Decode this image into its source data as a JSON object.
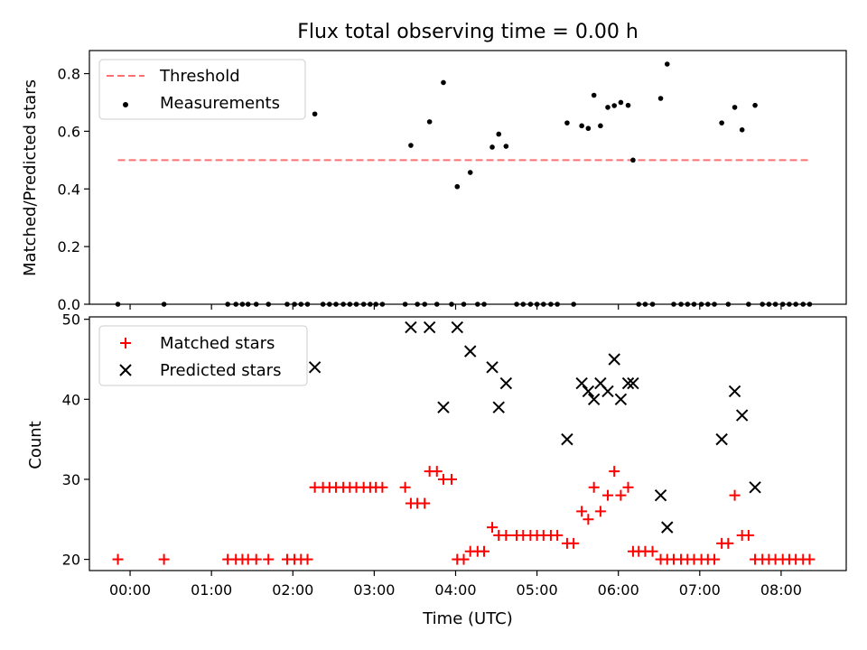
{
  "chart_data": [
    {
      "type": "scatter",
      "title": "Flux total observing time = 0.00 h",
      "xlabel": "",
      "ylabel": "Matched/Predicted stars",
      "xlim": [
        -0.5,
        8.8
      ],
      "ylim": [
        0.0,
        0.88
      ],
      "yticks": [
        0.0,
        0.2,
        0.4,
        0.6,
        0.8
      ],
      "ytick_labels": [
        "0.0",
        "0.2",
        "0.4",
        "0.6",
        "0.8"
      ],
      "xticks": [
        0,
        1,
        2,
        3,
        4,
        5,
        6,
        7,
        8
      ],
      "grid": false,
      "legend": "upper-left",
      "series": [
        {
          "name": "Threshold",
          "kind": "dashed-line",
          "color": "#ff7070",
          "x": [
            -0.15,
            8.35
          ],
          "y": [
            0.5,
            0.5
          ]
        },
        {
          "name": "Measurements",
          "kind": "dot",
          "color": "#000000",
          "x": [
            -0.15,
            0.4167,
            1.2,
            1.3,
            1.38,
            1.45,
            1.55,
            1.7,
            1.93,
            2.02,
            2.1,
            2.18,
            2.27,
            2.37,
            2.45,
            2.53,
            2.62,
            2.7,
            2.78,
            2.87,
            2.95,
            3.02,
            3.1,
            3.38,
            3.45,
            3.53,
            3.62,
            3.68,
            3.77,
            3.85,
            3.95,
            4.02,
            4.1,
            4.18,
            4.27,
            4.35,
            4.45,
            4.53,
            4.62,
            4.75,
            4.83,
            4.92,
            5.0,
            5.08,
            5.17,
            5.25,
            5.37,
            5.45,
            5.55,
            5.63,
            5.7,
            5.78,
            5.87,
            5.95,
            6.03,
            6.12,
            6.18,
            6.25,
            6.33,
            6.42,
            6.52,
            6.6,
            6.68,
            6.77,
            6.85,
            6.93,
            7.02,
            7.1,
            7.18,
            7.27,
            7.35,
            7.43,
            7.52,
            7.6,
            7.68,
            7.77,
            7.85,
            7.93,
            8.02,
            8.1,
            8.18,
            8.27,
            8.35
          ],
          "y": [
            0.0,
            0.0,
            0.0,
            0.0,
            0.0,
            0.0,
            0.0,
            0.0,
            0.0,
            0.0,
            0.0,
            0.0,
            0.66,
            0.0,
            0.0,
            0.0,
            0.0,
            0.0,
            0.0,
            0.0,
            0.0,
            0.0,
            0.0,
            0.0,
            0.551,
            0.0,
            0.0,
            0.633,
            0.0,
            0.769,
            0.0,
            0.408,
            0.0,
            0.457,
            0.0,
            0.0,
            0.545,
            0.59,
            0.548,
            0.0,
            0.0,
            0.0,
            0.0,
            0.0,
            0.0,
            0.0,
            0.629,
            0.0,
            0.619,
            0.61,
            0.725,
            0.619,
            0.683,
            0.689,
            0.7,
            0.69,
            0.5,
            0.0,
            0.0,
            0.0,
            0.714,
            0.833,
            0.0,
            0.0,
            0.0,
            0.0,
            0.0,
            0.0,
            0.0,
            0.629,
            0.0,
            0.683,
            0.605,
            0.0,
            0.69,
            0.0,
            0.0,
            0.0,
            0.0,
            0.0,
            0.0,
            0.0,
            0.0
          ]
        }
      ]
    },
    {
      "type": "scatter",
      "title": "",
      "xlabel": "Time (UTC)",
      "ylabel": "Count",
      "xlim": [
        -0.5,
        8.8
      ],
      "ylim": [
        18.6,
        50.3
      ],
      "yticks": [
        20,
        30,
        40,
        50
      ],
      "ytick_labels": [
        "20",
        "30",
        "40",
        "50"
      ],
      "xticks": [
        0,
        1,
        2,
        3,
        4,
        5,
        6,
        7,
        8
      ],
      "xtick_labels": [
        "00:00",
        "01:00",
        "02:00",
        "03:00",
        "04:00",
        "05:00",
        "06:00",
        "07:00",
        "08:00"
      ],
      "grid": false,
      "legend": "upper-left",
      "series": [
        {
          "name": "Matched stars",
          "kind": "plus",
          "color": "#ff0000",
          "x": [
            -0.15,
            0.4167,
            1.2,
            1.3,
            1.38,
            1.45,
            1.55,
            1.7,
            1.93,
            2.02,
            2.1,
            2.18,
            2.27,
            2.37,
            2.45,
            2.53,
            2.62,
            2.7,
            2.78,
            2.87,
            2.95,
            3.02,
            3.1,
            3.38,
            3.45,
            3.53,
            3.62,
            3.68,
            3.77,
            3.85,
            3.95,
            4.02,
            4.1,
            4.18,
            4.27,
            4.35,
            4.45,
            4.53,
            4.62,
            4.75,
            4.83,
            4.92,
            5.0,
            5.08,
            5.17,
            5.25,
            5.37,
            5.45,
            5.55,
            5.63,
            5.7,
            5.78,
            5.87,
            5.95,
            6.03,
            6.12,
            6.18,
            6.25,
            6.33,
            6.42,
            6.52,
            6.6,
            6.68,
            6.77,
            6.85,
            6.93,
            7.02,
            7.1,
            7.18,
            7.27,
            7.35,
            7.43,
            7.52,
            7.6,
            7.68,
            7.77,
            7.85,
            7.93,
            8.02,
            8.1,
            8.18,
            8.27,
            8.35
          ],
          "y": [
            20,
            20,
            20,
            20,
            20,
            20,
            20,
            20,
            20,
            20,
            20,
            20,
            29,
            29,
            29,
            29,
            29,
            29,
            29,
            29,
            29,
            29,
            29,
            29,
            27,
            27,
            27,
            31,
            31,
            30,
            30,
            20,
            20,
            21,
            21,
            21,
            24,
            23,
            23,
            23,
            23,
            23,
            23,
            23,
            23,
            23,
            22,
            22,
            26,
            25,
            29,
            26,
            28,
            31,
            28,
            29,
            21,
            21,
            21,
            21,
            20,
            20,
            20,
            20,
            20,
            20,
            20,
            20,
            20,
            22,
            22,
            28,
            23,
            23,
            20,
            20,
            20,
            20,
            20,
            20,
            20,
            20,
            20
          ]
        },
        {
          "name": "Predicted stars",
          "kind": "x",
          "color": "#000000",
          "x": [
            2.27,
            3.45,
            3.68,
            3.85,
            4.02,
            4.18,
            4.45,
            4.53,
            4.62,
            5.37,
            5.55,
            5.63,
            5.7,
            5.78,
            5.87,
            5.95,
            6.03,
            6.12,
            6.18,
            6.52,
            6.6,
            7.27,
            7.43,
            7.52,
            7.68
          ],
          "y": [
            44,
            49,
            49,
            39,
            49,
            46,
            44,
            39,
            42,
            35,
            42,
            41,
            40,
            42,
            41,
            45,
            40,
            42,
            42,
            28,
            24,
            35,
            41,
            38,
            29
          ]
        }
      ]
    }
  ]
}
